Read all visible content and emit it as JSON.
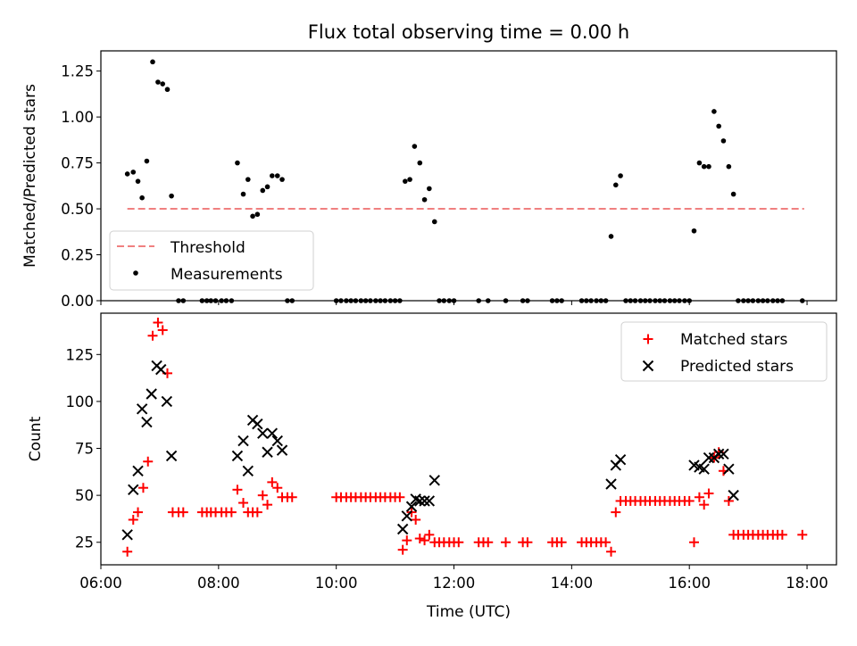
{
  "title": "Flux total observing time = 0.00 h",
  "chart_data": [
    {
      "type": "scatter",
      "ylabel": "Matched/Predicted stars",
      "xlabel": "",
      "ylim": [
        0.0,
        1.36
      ],
      "y_ticks": [
        0.0,
        0.25,
        0.5,
        0.75,
        1.0,
        1.25
      ],
      "y_tick_labels": [
        "0.00",
        "0.25",
        "0.50",
        "0.75",
        "1.00",
        "1.25"
      ],
      "xlim": [
        6.0,
        18.5
      ],
      "x_ticks": [
        6,
        8,
        10,
        12,
        14,
        16,
        18
      ],
      "grid": false,
      "legend_position": "bottom-left",
      "threshold": {
        "name": "Threshold",
        "value": 0.5,
        "x_range": [
          6.45,
          17.95
        ],
        "color": "#f08080"
      },
      "series": [
        {
          "name": "Measurements",
          "color": "#000000",
          "marker": "dot",
          "points": [
            [
              6.45,
              0.69
            ],
            [
              6.55,
              0.7
            ],
            [
              6.63,
              0.65
            ],
            [
              6.7,
              0.56
            ],
            [
              6.78,
              0.76
            ],
            [
              6.88,
              1.3
            ],
            [
              6.97,
              1.19
            ],
            [
              7.05,
              1.18
            ],
            [
              7.13,
              1.15
            ],
            [
              7.2,
              0.57
            ],
            [
              7.32,
              0.0
            ],
            [
              7.4,
              0.0
            ],
            [
              7.72,
              0.0
            ],
            [
              7.8,
              0.0
            ],
            [
              7.87,
              0.0
            ],
            [
              7.95,
              0.0
            ],
            [
              8.05,
              0.0
            ],
            [
              8.13,
              0.0
            ],
            [
              8.22,
              0.0
            ],
            [
              8.32,
              0.75
            ],
            [
              8.42,
              0.58
            ],
            [
              8.5,
              0.66
            ],
            [
              8.58,
              0.46
            ],
            [
              8.66,
              0.47
            ],
            [
              8.75,
              0.6
            ],
            [
              8.83,
              0.62
            ],
            [
              8.91,
              0.68
            ],
            [
              9.0,
              0.68
            ],
            [
              9.08,
              0.66
            ],
            [
              9.17,
              0.0
            ],
            [
              9.25,
              0.0
            ],
            [
              10.0,
              0.0
            ],
            [
              10.08,
              0.0
            ],
            [
              10.17,
              0.0
            ],
            [
              10.25,
              0.0
            ],
            [
              10.33,
              0.0
            ],
            [
              10.42,
              0.0
            ],
            [
              10.5,
              0.0
            ],
            [
              10.58,
              0.0
            ],
            [
              10.67,
              0.0
            ],
            [
              10.75,
              0.0
            ],
            [
              10.83,
              0.0
            ],
            [
              10.92,
              0.0
            ],
            [
              11.0,
              0.0
            ],
            [
              11.08,
              0.0
            ],
            [
              11.17,
              0.65
            ],
            [
              11.25,
              0.66
            ],
            [
              11.33,
              0.84
            ],
            [
              11.42,
              0.75
            ],
            [
              11.5,
              0.55
            ],
            [
              11.58,
              0.61
            ],
            [
              11.67,
              0.43
            ],
            [
              11.75,
              0.0
            ],
            [
              11.83,
              0.0
            ],
            [
              11.92,
              0.0
            ],
            [
              12.0,
              0.0
            ],
            [
              12.42,
              0.0
            ],
            [
              12.58,
              0.0
            ],
            [
              12.88,
              0.0
            ],
            [
              13.17,
              0.0
            ],
            [
              13.25,
              0.0
            ],
            [
              13.67,
              0.0
            ],
            [
              13.75,
              0.0
            ],
            [
              13.83,
              0.0
            ],
            [
              14.17,
              0.0
            ],
            [
              14.25,
              0.0
            ],
            [
              14.33,
              0.0
            ],
            [
              14.42,
              0.0
            ],
            [
              14.5,
              0.0
            ],
            [
              14.58,
              0.0
            ],
            [
              14.67,
              0.35
            ],
            [
              14.75,
              0.63
            ],
            [
              14.83,
              0.68
            ],
            [
              14.92,
              0.0
            ],
            [
              15.0,
              0.0
            ],
            [
              15.08,
              0.0
            ],
            [
              15.17,
              0.0
            ],
            [
              15.25,
              0.0
            ],
            [
              15.33,
              0.0
            ],
            [
              15.42,
              0.0
            ],
            [
              15.5,
              0.0
            ],
            [
              15.58,
              0.0
            ],
            [
              15.67,
              0.0
            ],
            [
              15.75,
              0.0
            ],
            [
              15.83,
              0.0
            ],
            [
              15.92,
              0.0
            ],
            [
              16.0,
              0.0
            ],
            [
              16.08,
              0.38
            ],
            [
              16.17,
              0.75
            ],
            [
              16.25,
              0.73
            ],
            [
              16.33,
              0.73
            ],
            [
              16.42,
              1.03
            ],
            [
              16.5,
              0.95
            ],
            [
              16.58,
              0.87
            ],
            [
              16.67,
              0.73
            ],
            [
              16.75,
              0.58
            ],
            [
              16.83,
              0.0
            ],
            [
              16.92,
              0.0
            ],
            [
              17.0,
              0.0
            ],
            [
              17.08,
              0.0
            ],
            [
              17.17,
              0.0
            ],
            [
              17.25,
              0.0
            ],
            [
              17.33,
              0.0
            ],
            [
              17.42,
              0.0
            ],
            [
              17.5,
              0.0
            ],
            [
              17.58,
              0.0
            ],
            [
              17.92,
              0.0
            ]
          ]
        }
      ]
    },
    {
      "type": "scatter",
      "ylabel": "Count",
      "xlabel": "Time (UTC)",
      "ylim": [
        13,
        147
      ],
      "y_ticks": [
        25,
        50,
        75,
        100,
        125
      ],
      "y_tick_labels": [
        "25",
        "50",
        "75",
        "100",
        "125"
      ],
      "xlim": [
        6.0,
        18.5
      ],
      "x_ticks": [
        6,
        8,
        10,
        12,
        14,
        16,
        18
      ],
      "x_tick_labels": [
        "06:00",
        "08:00",
        "10:00",
        "12:00",
        "14:00",
        "16:00",
        "18:00"
      ],
      "grid": false,
      "legend_position": "top-right",
      "series": [
        {
          "name": "Matched stars",
          "color": "#ff0000",
          "marker": "plus",
          "points": [
            [
              6.45,
              20
            ],
            [
              6.55,
              37
            ],
            [
              6.63,
              41
            ],
            [
              6.72,
              54
            ],
            [
              6.8,
              68
            ],
            [
              6.88,
              135
            ],
            [
              6.97,
              142
            ],
            [
              7.05,
              138
            ],
            [
              7.13,
              115
            ],
            [
              7.22,
              41
            ],
            [
              7.32,
              41
            ],
            [
              7.4,
              41
            ],
            [
              7.72,
              41
            ],
            [
              7.8,
              41
            ],
            [
              7.87,
              41
            ],
            [
              7.95,
              41
            ],
            [
              8.05,
              41
            ],
            [
              8.13,
              41
            ],
            [
              8.22,
              41
            ],
            [
              8.32,
              53
            ],
            [
              8.42,
              46
            ],
            [
              8.5,
              41
            ],
            [
              8.58,
              41
            ],
            [
              8.66,
              41
            ],
            [
              8.75,
              50
            ],
            [
              8.83,
              45
            ],
            [
              8.91,
              57
            ],
            [
              9.0,
              54
            ],
            [
              9.08,
              49
            ],
            [
              9.17,
              49
            ],
            [
              9.25,
              49
            ],
            [
              10.0,
              49
            ],
            [
              10.08,
              49
            ],
            [
              10.17,
              49
            ],
            [
              10.25,
              49
            ],
            [
              10.33,
              49
            ],
            [
              10.42,
              49
            ],
            [
              10.5,
              49
            ],
            [
              10.58,
              49
            ],
            [
              10.67,
              49
            ],
            [
              10.75,
              49
            ],
            [
              10.83,
              49
            ],
            [
              10.92,
              49
            ],
            [
              11.0,
              49
            ],
            [
              11.08,
              49
            ],
            [
              11.13,
              21
            ],
            [
              11.2,
              26
            ],
            [
              11.28,
              41
            ],
            [
              11.35,
              37
            ],
            [
              11.42,
              27
            ],
            [
              11.5,
              26
            ],
            [
              11.58,
              29
            ],
            [
              11.67,
              25
            ],
            [
              11.75,
              25
            ],
            [
              11.83,
              25
            ],
            [
              11.92,
              25
            ],
            [
              12.0,
              25
            ],
            [
              12.08,
              25
            ],
            [
              12.42,
              25
            ],
            [
              12.5,
              25
            ],
            [
              12.58,
              25
            ],
            [
              12.88,
              25
            ],
            [
              13.17,
              25
            ],
            [
              13.25,
              25
            ],
            [
              13.67,
              25
            ],
            [
              13.75,
              25
            ],
            [
              13.83,
              25
            ],
            [
              14.17,
              25
            ],
            [
              14.25,
              25
            ],
            [
              14.33,
              25
            ],
            [
              14.42,
              25
            ],
            [
              14.5,
              25
            ],
            [
              14.58,
              25
            ],
            [
              14.67,
              20
            ],
            [
              14.75,
              41
            ],
            [
              14.83,
              47
            ],
            [
              14.92,
              47
            ],
            [
              15.0,
              47
            ],
            [
              15.08,
              47
            ],
            [
              15.17,
              47
            ],
            [
              15.25,
              47
            ],
            [
              15.33,
              47
            ],
            [
              15.42,
              47
            ],
            [
              15.5,
              47
            ],
            [
              15.58,
              47
            ],
            [
              15.67,
              47
            ],
            [
              15.75,
              47
            ],
            [
              15.83,
              47
            ],
            [
              15.92,
              47
            ],
            [
              16.0,
              47
            ],
            [
              16.08,
              25
            ],
            [
              16.17,
              49
            ],
            [
              16.25,
              45
            ],
            [
              16.33,
              51
            ],
            [
              16.42,
              70
            ],
            [
              16.5,
              73
            ],
            [
              16.58,
              63
            ],
            [
              16.67,
              47
            ],
            [
              16.75,
              29
            ],
            [
              16.83,
              29
            ],
            [
              16.92,
              29
            ],
            [
              17.0,
              29
            ],
            [
              17.08,
              29
            ],
            [
              17.17,
              29
            ],
            [
              17.25,
              29
            ],
            [
              17.33,
              29
            ],
            [
              17.42,
              29
            ],
            [
              17.5,
              29
            ],
            [
              17.58,
              29
            ],
            [
              17.92,
              29
            ]
          ]
        },
        {
          "name": "Predicted stars",
          "color": "#000000",
          "marker": "x",
          "points": [
            [
              6.45,
              29
            ],
            [
              6.55,
              53
            ],
            [
              6.63,
              63
            ],
            [
              6.7,
              96
            ],
            [
              6.78,
              89
            ],
            [
              6.86,
              104
            ],
            [
              6.95,
              119
            ],
            [
              7.02,
              117
            ],
            [
              7.12,
              100
            ],
            [
              7.2,
              71
            ],
            [
              8.32,
              71
            ],
            [
              8.42,
              79
            ],
            [
              8.5,
              63
            ],
            [
              8.58,
              90
            ],
            [
              8.66,
              88
            ],
            [
              8.75,
              83
            ],
            [
              8.83,
              73
            ],
            [
              8.91,
              83
            ],
            [
              9.0,
              79
            ],
            [
              9.08,
              74
            ],
            [
              11.13,
              32
            ],
            [
              11.2,
              39
            ],
            [
              11.28,
              44
            ],
            [
              11.35,
              48
            ],
            [
              11.42,
              47
            ],
            [
              11.5,
              47
            ],
            [
              11.58,
              47
            ],
            [
              11.67,
              58
            ],
            [
              14.67,
              56
            ],
            [
              14.75,
              66
            ],
            [
              14.83,
              69
            ],
            [
              16.08,
              66
            ],
            [
              16.17,
              65
            ],
            [
              16.25,
              64
            ],
            [
              16.33,
              70
            ],
            [
              16.42,
              70
            ],
            [
              16.5,
              72
            ],
            [
              16.58,
              72
            ],
            [
              16.67,
              64
            ],
            [
              16.75,
              50
            ]
          ]
        }
      ]
    }
  ]
}
